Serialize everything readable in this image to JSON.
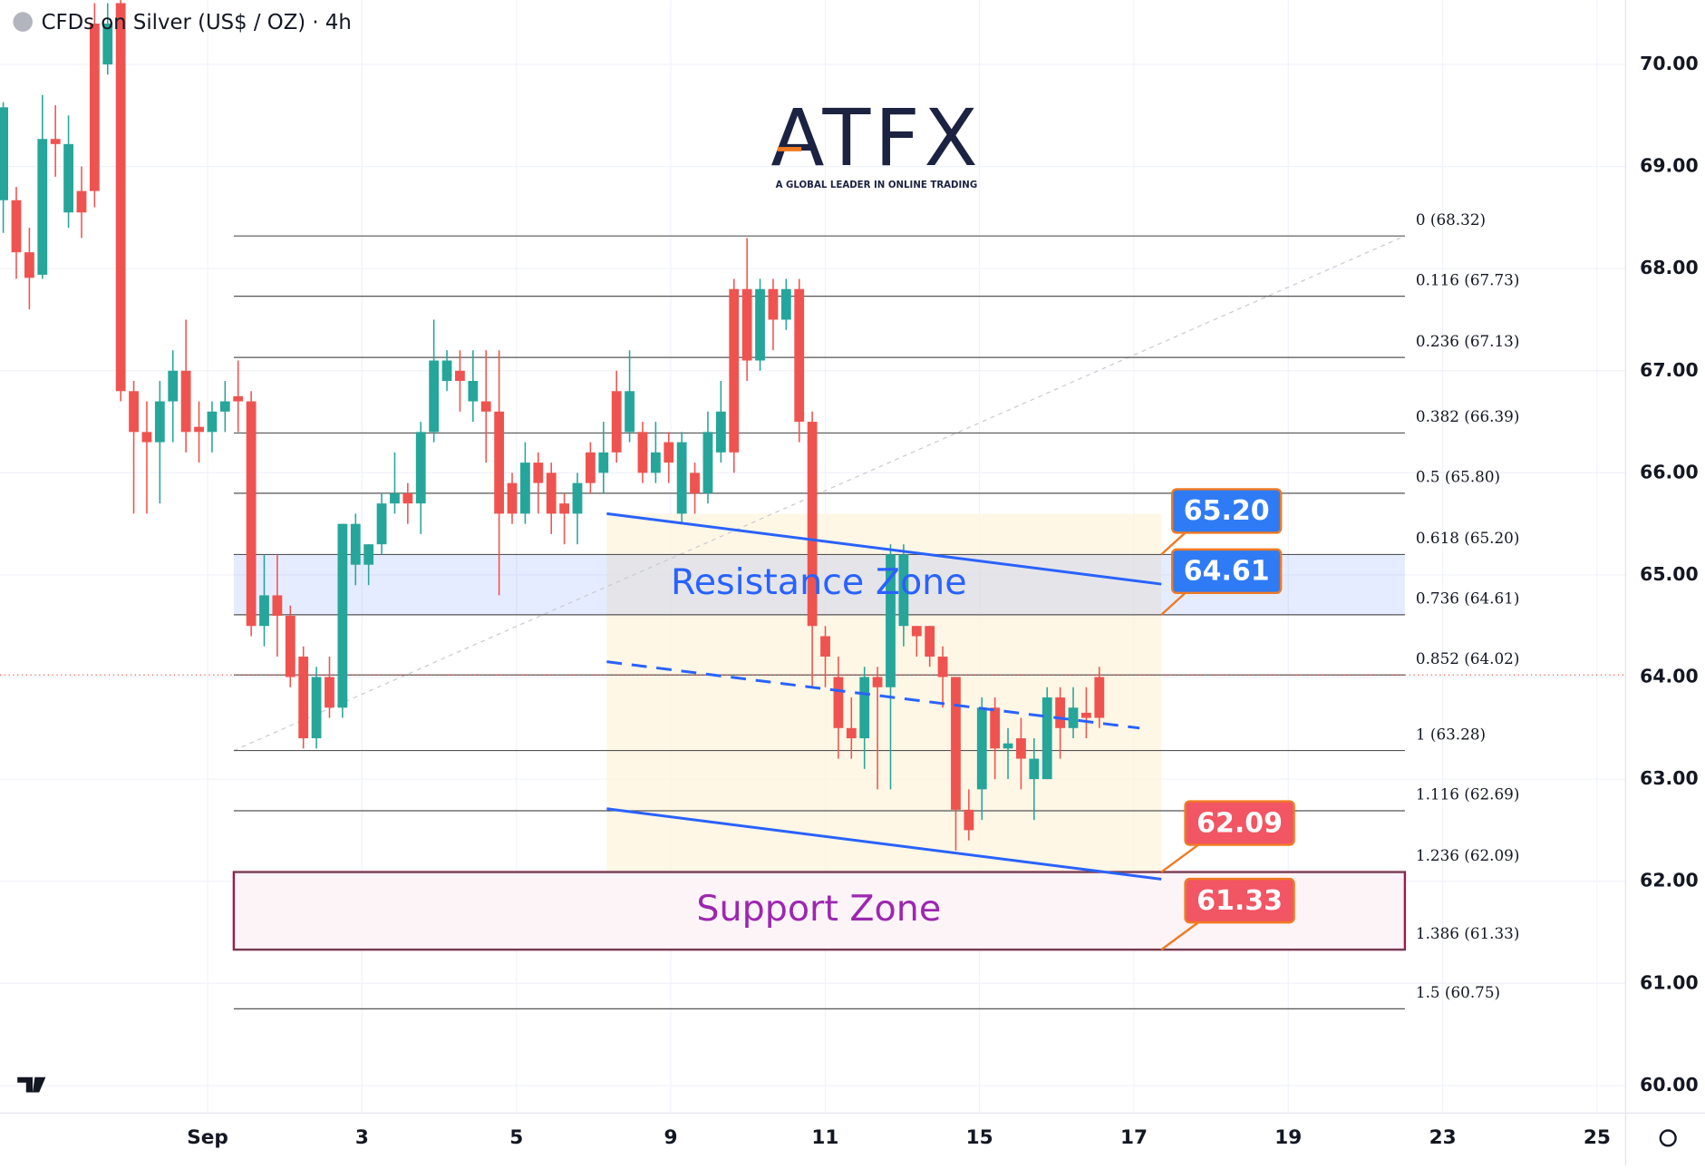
{
  "chart_data": {
    "type": "candlestick",
    "title": "CFDs on Silver (US$ / OZ) · 4h",
    "logo": {
      "title": "ATFX",
      "subtitle": "A GLOBAL LEADER IN ONLINE TRADING"
    },
    "ylim": [
      59.74,
      70.63
    ],
    "yticks": [
      {
        "value": 60,
        "label": "60.00"
      },
      {
        "value": 61,
        "label": "61.00"
      },
      {
        "value": 62,
        "label": "62.00"
      },
      {
        "value": 63,
        "label": "63.00"
      },
      {
        "value": 64,
        "label": "64.00"
      },
      {
        "value": 65,
        "label": "65.00"
      },
      {
        "value": 66,
        "label": "66.00"
      },
      {
        "value": 67,
        "label": "67.00"
      },
      {
        "value": 68,
        "label": "68.00"
      },
      {
        "value": 69,
        "label": "69.00"
      },
      {
        "value": 70,
        "label": "70.00"
      }
    ],
    "xticks": [
      {
        "value": 0,
        "label": "Sep"
      },
      {
        "value": 2,
        "label": "3"
      },
      {
        "value": 4,
        "label": "5"
      },
      {
        "value": 6,
        "label": "9"
      },
      {
        "value": 8,
        "label": "11"
      },
      {
        "value": 10,
        "label": "15"
      },
      {
        "value": 12,
        "label": "17"
      },
      {
        "value": 14,
        "label": "19"
      },
      {
        "value": 16,
        "label": "23"
      },
      {
        "value": 18,
        "label": "25"
      }
    ],
    "xlim": [
      -2.69,
      18.37
    ],
    "grid": true,
    "up_color": "#26a69a",
    "down_color": "#ef5350",
    "candles": [
      {
        "open": 68.67,
        "high": 69.63,
        "low": 68.35,
        "close": 69.58
      },
      {
        "open": 68.67,
        "high": 68.8,
        "low": 67.9,
        "close": 68.16
      },
      {
        "open": 68.16,
        "high": 68.4,
        "low": 67.6,
        "close": 67.91
      },
      {
        "open": 67.94,
        "high": 69.7,
        "low": 67.9,
        "close": 69.27
      },
      {
        "open": 69.27,
        "high": 69.6,
        "low": 68.9,
        "close": 69.22
      },
      {
        "open": 68.55,
        "high": 69.5,
        "low": 68.4,
        "close": 69.22
      },
      {
        "open": 68.76,
        "high": 69.0,
        "low": 68.3,
        "close": 68.55
      },
      {
        "open": 70.4,
        "high": 70.6,
        "low": 68.6,
        "close": 68.76
      },
      {
        "open": 70.0,
        "high": 70.6,
        "low": 69.9,
        "close": 70.4
      },
      {
        "open": 70.6,
        "high": 70.63,
        "low": 66.7,
        "close": 66.8
      },
      {
        "open": 66.8,
        "high": 66.9,
        "low": 65.6,
        "close": 66.4
      },
      {
        "open": 66.4,
        "high": 66.7,
        "low": 65.6,
        "close": 66.3
      },
      {
        "open": 66.3,
        "high": 66.9,
        "low": 65.7,
        "close": 66.7
      },
      {
        "open": 66.7,
        "high": 67.2,
        "low": 66.3,
        "close": 67.0
      },
      {
        "open": 67.0,
        "high": 67.5,
        "low": 66.2,
        "close": 66.4
      },
      {
        "open": 66.45,
        "high": 66.7,
        "low": 66.1,
        "close": 66.4
      },
      {
        "open": 66.4,
        "high": 66.7,
        "low": 66.2,
        "close": 66.6
      },
      {
        "open": 66.6,
        "high": 66.9,
        "low": 66.4,
        "close": 66.7
      },
      {
        "open": 66.75,
        "high": 67.1,
        "low": 66.4,
        "close": 66.7
      },
      {
        "open": 66.7,
        "high": 66.8,
        "low": 64.4,
        "close": 64.5
      },
      {
        "open": 64.5,
        "high": 65.2,
        "low": 64.3,
        "close": 64.8
      },
      {
        "open": 64.8,
        "high": 65.2,
        "low": 64.2,
        "close": 64.6
      },
      {
        "open": 64.6,
        "high": 64.7,
        "low": 63.9,
        "close": 64.0
      },
      {
        "open": 64.2,
        "high": 64.3,
        "low": 63.3,
        "close": 63.4
      },
      {
        "open": 63.4,
        "high": 64.1,
        "low": 63.3,
        "close": 64.0
      },
      {
        "open": 64.0,
        "high": 64.2,
        "low": 63.6,
        "close": 63.7
      },
      {
        "open": 63.7,
        "high": 65.5,
        "low": 63.6,
        "close": 65.5
      },
      {
        "open": 65.1,
        "high": 65.6,
        "low": 64.9,
        "close": 65.5
      },
      {
        "open": 65.1,
        "high": 65.3,
        "low": 64.9,
        "close": 65.3
      },
      {
        "open": 65.3,
        "high": 65.8,
        "low": 65.2,
        "close": 65.7
      },
      {
        "open": 65.7,
        "high": 66.2,
        "low": 65.6,
        "close": 65.8
      },
      {
        "open": 65.8,
        "high": 65.9,
        "low": 65.5,
        "close": 65.7
      },
      {
        "open": 65.7,
        "high": 66.5,
        "low": 65.4,
        "close": 66.4
      },
      {
        "open": 66.4,
        "high": 67.5,
        "low": 66.3,
        "close": 67.1
      },
      {
        "open": 66.9,
        "high": 67.2,
        "low": 66.8,
        "close": 67.1
      },
      {
        "open": 67.0,
        "high": 67.2,
        "low": 66.6,
        "close": 66.9
      },
      {
        "open": 66.7,
        "high": 67.2,
        "low": 66.5,
        "close": 66.9
      },
      {
        "open": 66.7,
        "high": 67.2,
        "low": 66.1,
        "close": 66.6
      },
      {
        "open": 66.6,
        "high": 67.2,
        "low": 64.8,
        "close": 65.6
      },
      {
        "open": 65.9,
        "high": 66.0,
        "low": 65.5,
        "close": 65.6
      },
      {
        "open": 65.6,
        "high": 66.3,
        "low": 65.5,
        "close": 66.1
      },
      {
        "open": 66.1,
        "high": 66.2,
        "low": 65.6,
        "close": 65.9
      },
      {
        "open": 66.0,
        "high": 66.1,
        "low": 65.4,
        "close": 65.6
      },
      {
        "open": 65.7,
        "high": 65.8,
        "low": 65.3,
        "close": 65.6
      },
      {
        "open": 65.6,
        "high": 66.0,
        "low": 65.3,
        "close": 65.9
      },
      {
        "open": 66.2,
        "high": 66.3,
        "low": 65.8,
        "close": 65.9
      },
      {
        "open": 66.0,
        "high": 66.5,
        "low": 65.8,
        "close": 66.2
      },
      {
        "open": 66.8,
        "high": 67.0,
        "low": 66.1,
        "close": 66.2
      },
      {
        "open": 66.4,
        "high": 67.2,
        "low": 66.3,
        "close": 66.8
      },
      {
        "open": 66.4,
        "high": 66.5,
        "low": 65.9,
        "close": 66.0
      },
      {
        "open": 66.0,
        "high": 66.5,
        "low": 65.9,
        "close": 66.2
      },
      {
        "open": 66.3,
        "high": 66.4,
        "low": 65.9,
        "close": 66.1
      },
      {
        "open": 65.6,
        "high": 66.4,
        "low": 65.5,
        "close": 66.3
      },
      {
        "open": 66.0,
        "high": 66.1,
        "low": 65.6,
        "close": 65.8
      },
      {
        "open": 65.8,
        "high": 66.6,
        "low": 65.7,
        "close": 66.4
      },
      {
        "open": 66.2,
        "high": 66.9,
        "low": 66.1,
        "close": 66.6
      },
      {
        "open": 67.8,
        "high": 67.9,
        "low": 66.0,
        "close": 66.2
      },
      {
        "open": 67.8,
        "high": 68.3,
        "low": 66.9,
        "close": 67.1
      },
      {
        "open": 67.1,
        "high": 67.9,
        "low": 67.0,
        "close": 67.8
      },
      {
        "open": 67.8,
        "high": 67.9,
        "low": 67.2,
        "close": 67.5
      },
      {
        "open": 67.5,
        "high": 67.9,
        "low": 67.4,
        "close": 67.8
      },
      {
        "open": 67.8,
        "high": 67.9,
        "low": 66.3,
        "close": 66.5
      },
      {
        "open": 66.5,
        "high": 66.6,
        "low": 63.9,
        "close": 64.5
      },
      {
        "open": 64.4,
        "high": 64.5,
        "low": 63.9,
        "close": 64.2
      },
      {
        "open": 64.0,
        "high": 64.2,
        "low": 63.2,
        "close": 63.5
      },
      {
        "open": 63.5,
        "high": 63.8,
        "low": 63.2,
        "close": 63.4
      },
      {
        "open": 63.4,
        "high": 64.1,
        "low": 63.1,
        "close": 64.0
      },
      {
        "open": 64.0,
        "high": 64.1,
        "low": 62.9,
        "close": 63.9
      },
      {
        "open": 63.9,
        "high": 65.3,
        "low": 62.9,
        "close": 65.2
      },
      {
        "open": 64.5,
        "high": 65.3,
        "low": 64.3,
        "close": 65.2
      },
      {
        "open": 64.5,
        "high": 64.5,
        "low": 64.2,
        "close": 64.4
      },
      {
        "open": 64.5,
        "high": 64.5,
        "low": 64.1,
        "close": 64.2
      },
      {
        "open": 64.2,
        "high": 64.3,
        "low": 63.7,
        "close": 64.0
      },
      {
        "open": 64.0,
        "high": 64.0,
        "low": 62.3,
        "close": 62.7
      },
      {
        "open": 62.7,
        "high": 62.9,
        "low": 62.4,
        "close": 62.5
      },
      {
        "open": 62.9,
        "high": 63.8,
        "low": 62.6,
        "close": 63.7
      },
      {
        "open": 63.7,
        "high": 63.8,
        "low": 63.0,
        "close": 63.3
      },
      {
        "open": 63.3,
        "high": 63.5,
        "low": 63.0,
        "close": 63.35
      },
      {
        "open": 63.4,
        "high": 63.6,
        "low": 62.9,
        "close": 63.2
      },
      {
        "open": 63.0,
        "high": 63.4,
        "low": 62.6,
        "close": 63.2
      },
      {
        "open": 63.0,
        "high": 63.9,
        "low": 63.0,
        "close": 63.8
      },
      {
        "open": 63.8,
        "high": 63.9,
        "low": 63.2,
        "close": 63.5
      },
      {
        "open": 63.5,
        "high": 63.9,
        "low": 63.4,
        "close": 63.7
      },
      {
        "open": 63.65,
        "high": 63.9,
        "low": 63.4,
        "close": 63.6
      },
      {
        "open": 64.0,
        "high": 64.1,
        "low": 63.5,
        "close": 63.6
      }
    ],
    "current_price": 64.02,
    "fib_levels": [
      {
        "value": 68.32,
        "label": "0 (68.32)"
      },
      {
        "value": 67.73,
        "label": "0.116 (67.73)"
      },
      {
        "value": 67.13,
        "label": "0.236 (67.13)"
      },
      {
        "value": 66.39,
        "label": "0.382 (66.39)"
      },
      {
        "value": 65.8,
        "label": "0.5 (65.80)"
      },
      {
        "value": 65.2,
        "label": "0.618 (65.20)"
      },
      {
        "value": 64.61,
        "label": "0.736 (64.61)"
      },
      {
        "value": 64.02,
        "label": "0.852 (64.02)"
      },
      {
        "value": 63.28,
        "label": "1 (63.28)"
      },
      {
        "value": 62.69,
        "label": "1.116 (62.69)"
      },
      {
        "value": 62.09,
        "label": "1.236 (62.09)"
      },
      {
        "value": 61.33,
        "label": "1.386 (61.33)"
      },
      {
        "value": 60.75,
        "label": "1.5 (60.75)"
      }
    ],
    "zones": [
      {
        "label": "Resistance Zone",
        "low": 64.61,
        "high": 65.2,
        "color": "#2962ff"
      },
      {
        "label": "Support Zone",
        "low": 61.33,
        "high": 62.09,
        "color": "#9c27b0"
      }
    ],
    "channel": {
      "upper": [
        65.6,
        64.91
      ],
      "middle": [
        64.15,
        63.5
      ],
      "lower": [
        62.71,
        62.02
      ]
    },
    "price_tags": [
      {
        "value": 65.2,
        "label": "65.20",
        "color": "#2f7bf5"
      },
      {
        "value": 64.61,
        "label": "64.61",
        "color": "#2f7bf5"
      },
      {
        "value": 62.09,
        "label": "62.09",
        "color": "#f25563"
      },
      {
        "value": 61.33,
        "label": "61.33",
        "color": "#f25563"
      }
    ]
  }
}
